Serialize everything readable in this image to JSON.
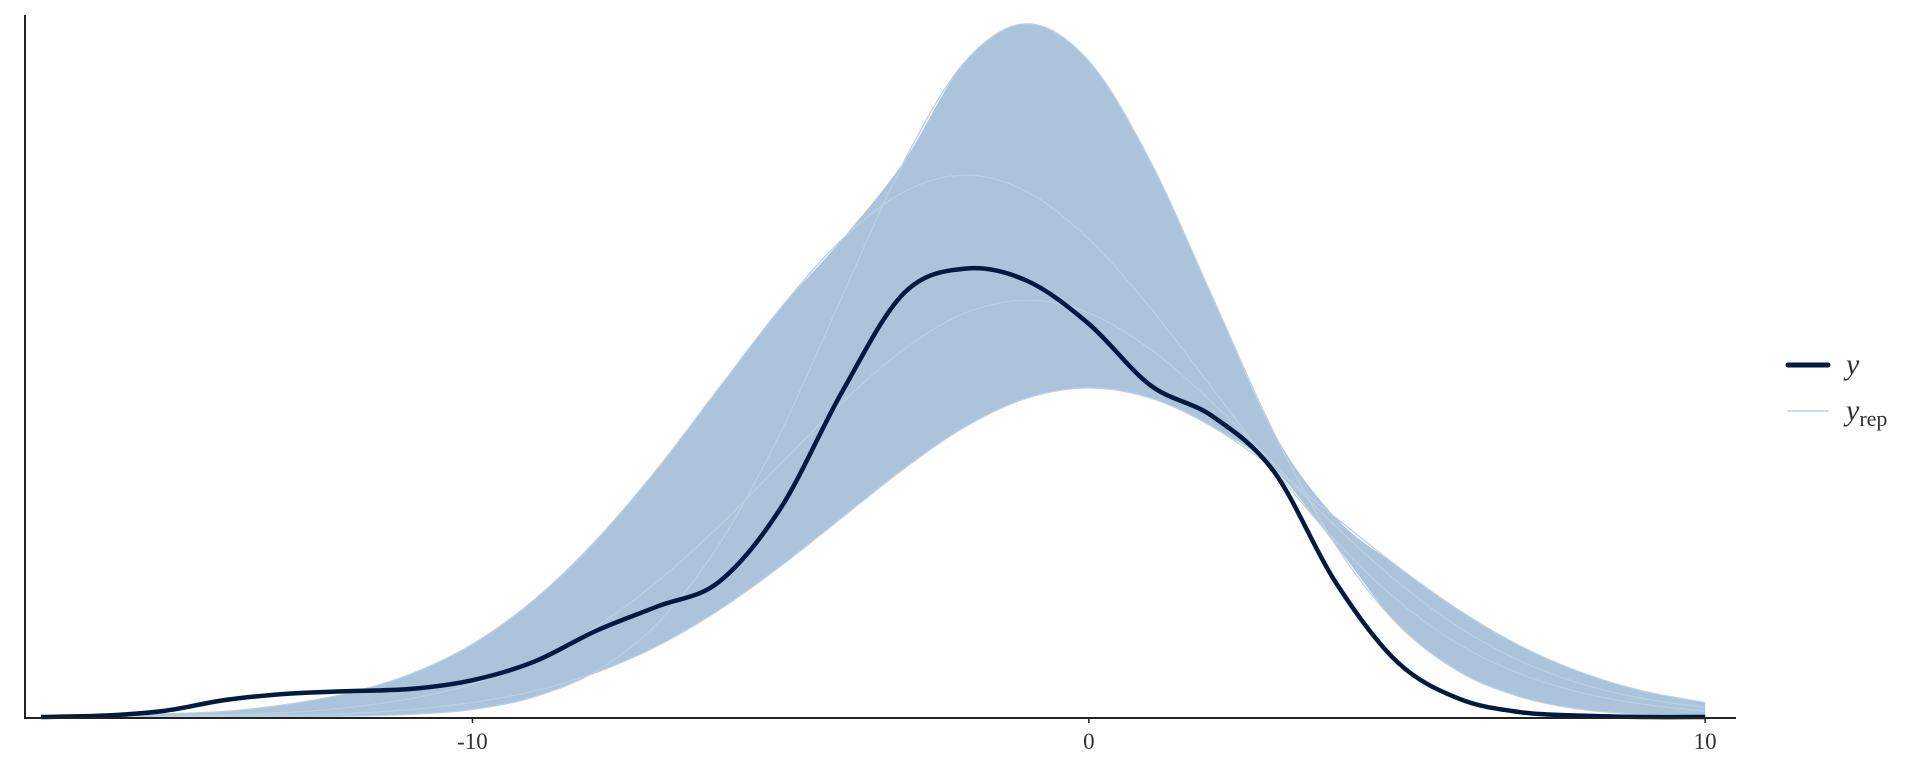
{
  "chart_data": {
    "type": "density_overlay",
    "x": [
      -17,
      -16,
      -15,
      -14,
      -13,
      -12,
      -11,
      -10,
      -9,
      -8,
      -7,
      -6,
      -5,
      -4,
      -3,
      -2,
      -1,
      0,
      1,
      2,
      3,
      4,
      5,
      6,
      7,
      8,
      9,
      10
    ],
    "xlim": [
      -17.26,
      10.5
    ],
    "xticks": [
      -10,
      0,
      10
    ],
    "ylim": [
      0,
      0.16
    ],
    "series": [
      {
        "name": "y",
        "color": "#011a3e",
        "values": [
          0,
          0.0003,
          0.0014,
          0.0039,
          0.0053,
          0.0059,
          0.0064,
          0.0084,
          0.0126,
          0.0196,
          0.0252,
          0.0308,
          0.0476,
          0.0742,
          0.0966,
          0.1022,
          0.0994,
          0.0896,
          0.0756,
          0.0686,
          0.056,
          0.0308,
          0.0126,
          0.0042,
          0.0011,
          0.0003,
          0,
          0
        ]
      },
      {
        "name": "y",
        "subscript": "rep",
        "color": "#a7c1d9",
        "draws": [
          [
            0,
            0.0001,
            0.0002,
            0.0005,
            0.001,
            0.0022,
            0.0042,
            0.0075,
            0.0128,
            0.0205,
            0.0309,
            0.0435,
            0.0577,
            0.0717,
            0.0838,
            0.0921,
            0.095,
            0.0921,
            0.0838,
            0.0717,
            0.0577,
            0.0435,
            0.0309,
            0.0205,
            0.0128,
            0.0075,
            0.0042,
            0.0022
          ],
          [
            0.0001,
            0.0003,
            0.0007,
            0.0013,
            0.0029,
            0.0055,
            0.0098,
            0.0166,
            0.0267,
            0.0402,
            0.0566,
            0.075,
            0.0932,
            0.1089,
            0.1197,
            0.1235,
            0.1197,
            0.1089,
            0.0932,
            0.075,
            0.0566,
            0.0402,
            0.0267,
            0.0166,
            0.0098,
            0.0055,
            0.0029,
            0.0013
          ],
          [
            0,
            0,
            0.0001,
            0.0002,
            0.0004,
            0.0008,
            0.0017,
            0.0033,
            0.0059,
            0.0101,
            0.0162,
            0.0244,
            0.0344,
            0.0455,
            0.0566,
            0.0662,
            0.0727,
            0.075,
            0.0727,
            0.0662,
            0.0566,
            0.0455,
            0.0344,
            0.0244,
            0.0162,
            0.0101,
            0.0059,
            0.0033
          ],
          [
            0,
            0,
            0,
            0,
            0,
            0.0002,
            0.0006,
            0.0017,
            0.0046,
            0.0104,
            0.0213,
            0.0393,
            0.0649,
            0.0959,
            0.1266,
            0.1495,
            0.158,
            0.1495,
            0.1266,
            0.0959,
            0.0649,
            0.0393,
            0.0213,
            0.0104,
            0.0046,
            0.0017,
            0.0006,
            0.0002
          ]
        ]
      }
    ],
    "legend": "right"
  }
}
